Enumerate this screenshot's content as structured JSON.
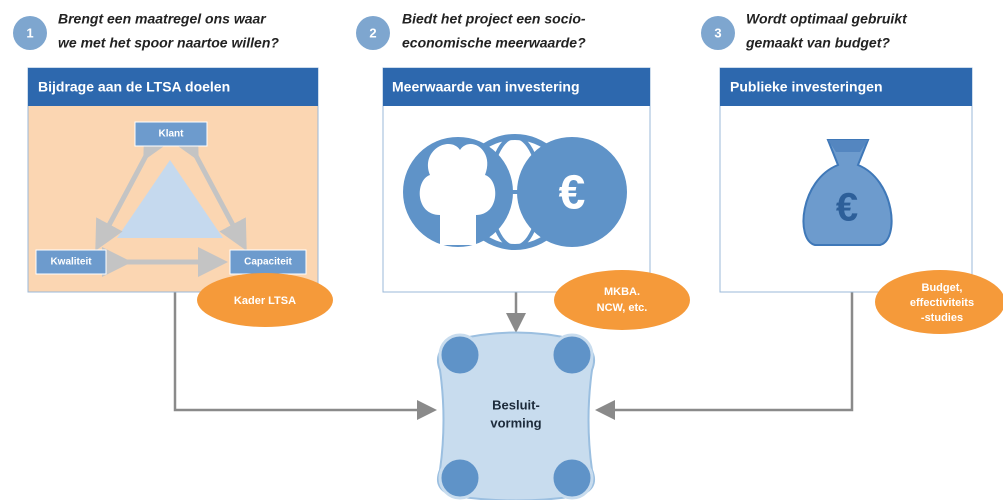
{
  "columns": [
    {
      "number": "1",
      "question": [
        "Brengt een maatregel ons waar",
        "we met het spoor naartoe willen?"
      ],
      "header": "Bijdrage aan de LTSA doelen",
      "tag": [
        "Kader LTSA"
      ]
    },
    {
      "number": "2",
      "question": [
        "Biedt het project een socio-",
        "economische meerwaarde?"
      ],
      "header": "Meerwaarde van investering",
      "tag": [
        "MKBA.",
        "NCW, etc."
      ]
    },
    {
      "number": "3",
      "question": [
        "Wordt optimaal gebruikt",
        "gemaakt van budget?"
      ],
      "header": "Publieke investeringen",
      "tag": [
        "Budget,",
        "effectiviteits",
        "-studies"
      ]
    }
  ],
  "triangle": {
    "top": "Klant",
    "left": "Kwaliteit",
    "right": "Capaciteit"
  },
  "center": [
    "Besluit-",
    "vorming"
  ]
}
